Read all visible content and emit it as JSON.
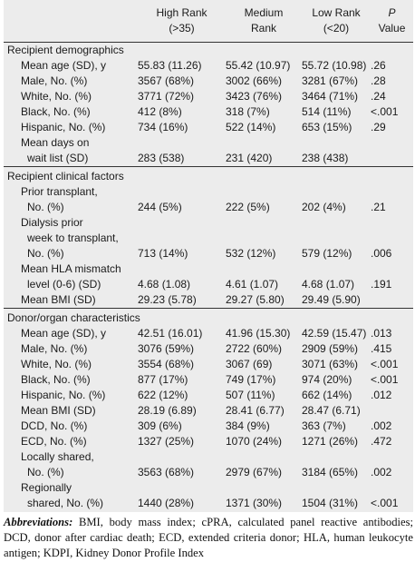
{
  "header": {
    "high": [
      "High Rank",
      "(>35)"
    ],
    "medium": [
      "Medium",
      "Rank"
    ],
    "low": [
      "Low Rank",
      "(<20)"
    ],
    "p": [
      "P",
      "Value"
    ]
  },
  "sections": [
    {
      "title": "Recipient demographics",
      "rows": [
        {
          "label": [
            "Mean age (SD), y"
          ],
          "high": "55.83 (11.26)",
          "medium": "55.42 (10.97)",
          "low": "55.72 (10.98)",
          "p": ".26"
        },
        {
          "label": [
            "Male, No. (%)"
          ],
          "high": "3567 (68%)",
          "medium": "3002 (66%)",
          "low": "3281 (67%)",
          "p": ".28"
        },
        {
          "label": [
            "White, No. (%)"
          ],
          "high": "3771 (72%)",
          "medium": "3423 (76%)",
          "low": "3464 (71%)",
          "p": ".24"
        },
        {
          "label": [
            "Black, No. (%)"
          ],
          "high": "412 (8%)",
          "medium": "318 (7%)",
          "low": "514 (11%)",
          "p": "<.001"
        },
        {
          "label": [
            "Hispanic, No. (%)"
          ],
          "high": "734 (16%)",
          "medium": "522 (14%)",
          "low": "653 (15%)",
          "p": ".29"
        },
        {
          "label": [
            "Mean days on",
            "wait list (SD)"
          ],
          "high": "283 (538)",
          "medium": "231 (420)",
          "low": "238 (438)",
          "p": ""
        }
      ]
    },
    {
      "title": "Recipient clinical factors",
      "rows": [
        {
          "label": [
            "Prior transplant,",
            "No. (%)"
          ],
          "high": "244 (5%)",
          "medium": "222 (5%)",
          "low": "202 (4%)",
          "p": ".21"
        },
        {
          "label": [
            "Dialysis prior",
            "week to transplant,",
            "No. (%)"
          ],
          "high": "713 (14%)",
          "medium": "532 (12%)",
          "low": "579 (12%)",
          "p": ".006"
        },
        {
          "label": [
            "Mean HLA mismatch",
            "level (0-6) (SD)"
          ],
          "high": "4.68 (1.08)",
          "medium": "4.61 (1.07)",
          "low": "4.68 (1.07)",
          "p": ".191"
        },
        {
          "label": [
            "Mean BMI (SD)"
          ],
          "high": "29.23 (5.78)",
          "medium": "29.27 (5.80)",
          "low": "29.49 (5.90)",
          "p": ""
        }
      ]
    },
    {
      "title": "Donor/organ characteristics",
      "rows": [
        {
          "label": [
            "Mean age (SD), y"
          ],
          "high": "42.51 (16.01)",
          "medium": "41.96 (15.30)",
          "low": "42.59 (15.47)",
          "p": ".013"
        },
        {
          "label": [
            "Male, No. (%)"
          ],
          "high": "3076 (59%)",
          "medium": "2722 (60%)",
          "low": "2909 (59%)",
          "p": ".415"
        },
        {
          "label": [
            "White, No. (%)"
          ],
          "high": "3554 (68%)",
          "medium": "3067 (69)",
          "low": "3071 (63%)",
          "p": "<.001"
        },
        {
          "label": [
            "Black, No. (%)"
          ],
          "high": "877 (17%)",
          "medium": "749 (17%)",
          "low": "974 (20%)",
          "p": "<.001"
        },
        {
          "label": [
            "Hispanic, No. (%)"
          ],
          "high": "622 (12%)",
          "medium": "507 (11%)",
          "low": "662 (14%)",
          "p": ".012"
        },
        {
          "label": [
            "Mean BMI (SD)"
          ],
          "high": "28.19 (6.89)",
          "medium": "28.41 (6.77)",
          "low": "28.47 (6.71)",
          "p": ""
        },
        {
          "label": [
            "DCD, No. (%)"
          ],
          "high": "309 (6%)",
          "medium": "384 (9%)",
          "low": "363 (7%)",
          "p": ".002"
        },
        {
          "label": [
            "ECD, No. (%)"
          ],
          "high": "1327 (25%)",
          "medium": "1070 (24%)",
          "low": "1271 (26%)",
          "p": ".472"
        },
        {
          "label": [
            "Locally shared,",
            "No. (%)"
          ],
          "high": "3563 (68%)",
          "medium": "2979 (67%)",
          "low": "3184 (65%)",
          "p": ".002"
        },
        {
          "label": [
            "Regionally",
            "shared, No. (%)"
          ],
          "high": "1440 (28%)",
          "medium": "1371 (30%)",
          "low": "1504 (31%)",
          "p": "<.001"
        }
      ]
    }
  ],
  "footnote": {
    "label": "Abbreviations:",
    "text": " BMI, body mass index; cPRA, calculated panel reactive antibodies; DCD, donor after cardiac death; ECD, extended criteria donor; HLA, human leukocyte antigen; KDPI, Kidney Donor Profile Index"
  },
  "colors": {
    "table_background": "#ececec",
    "rule": "#333333"
  }
}
